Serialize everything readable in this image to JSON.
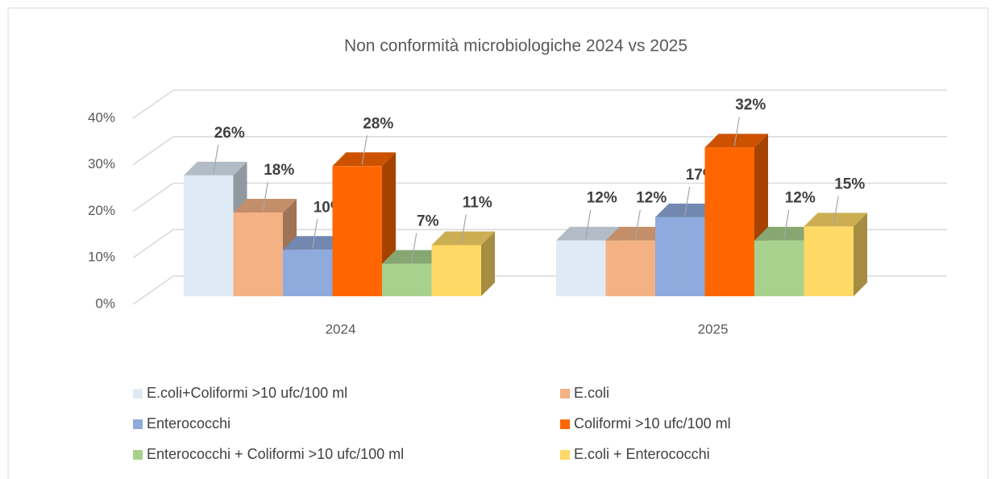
{
  "chart_data": {
    "type": "bar3d",
    "title": "Non conformità microbiologiche 2024 vs 2025",
    "categories": [
      "2024",
      "2025"
    ],
    "series": [
      {
        "name": "E.coli+Coliformi >10 ufc/100 ml",
        "color": "#deebf7",
        "values": [
          26,
          12
        ],
        "value_labels": [
          "26%",
          "12%"
        ]
      },
      {
        "name": "E.coli",
        "color": "#f4b183",
        "values": [
          18,
          12
        ],
        "value_labels": [
          "18%",
          "12%"
        ]
      },
      {
        "name": "Enterococchi",
        "color": "#8faadc",
        "values": [
          10,
          17
        ],
        "value_labels": [
          "10%",
          "17%"
        ]
      },
      {
        "name": "Coliformi >10 ufc/100 ml",
        "color": "#ff6600",
        "values": [
          28,
          32
        ],
        "value_labels": [
          "28%",
          "32%"
        ]
      },
      {
        "name": "Enterococchi + Coliformi >10 ufc/100 ml",
        "color": "#a9d18e",
        "values": [
          7,
          12
        ],
        "value_labels": [
          "7%",
          "12%"
        ]
      },
      {
        "name": "E.coli + Enterococchi",
        "color": "#ffd966",
        "values": [
          11,
          15
        ],
        "value_labels": [
          "11%",
          "15%"
        ]
      }
    ],
    "ylim": [
      0,
      40
    ],
    "yticks": [
      {
        "value": 0,
        "label": "0%"
      },
      {
        "value": 10,
        "label": "10%"
      },
      {
        "value": 20,
        "label": "20%"
      },
      {
        "value": 30,
        "label": "30%"
      },
      {
        "value": 40,
        "label": "40%"
      }
    ],
    "grid": true,
    "legend": "bottom"
  }
}
